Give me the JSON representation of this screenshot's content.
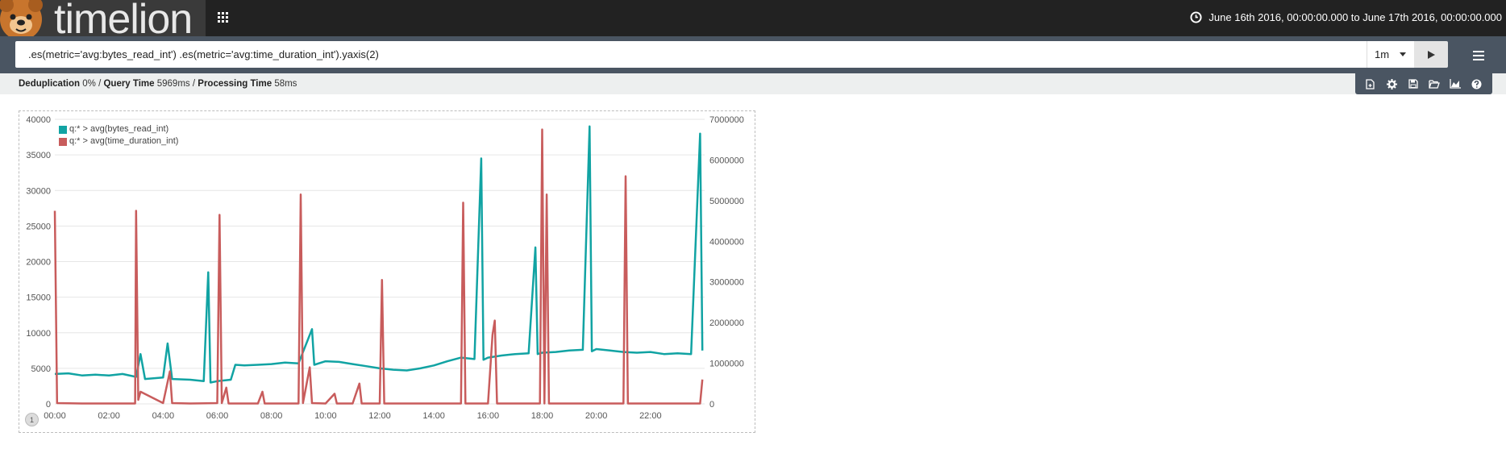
{
  "header": {
    "app_name": "timelion",
    "time_range": "June 16th 2016, 00:00:00.000 to June 17th 2016, 00:00:00.000"
  },
  "query": {
    "expression": ".es(metric='avg:bytes_read_int') .es(metric='avg:time_duration_int').yaxis(2)",
    "interval": "1m"
  },
  "stats": {
    "dedup_label": "Deduplication",
    "dedup_value": "0%",
    "sep1": "/",
    "query_time_label": "Query Time",
    "query_time_value": "5969ms",
    "sep2": "/",
    "processing_label": "Processing Time",
    "processing_value": "58ms"
  },
  "toolbar": {
    "icons": [
      "new-sheet-icon",
      "settings-icon",
      "save-icon",
      "open-icon",
      "chart-options-icon",
      "help-icon"
    ]
  },
  "panel": {
    "badge": "1"
  },
  "chart_data": {
    "type": "line",
    "colors": {
      "bytes_read": "#11a3a3",
      "time_duration": "#c85c5c"
    },
    "legend_position": "top-left",
    "grid": true,
    "x_ticks": [
      "00:00",
      "02:00",
      "04:00",
      "06:00",
      "08:00",
      "10:00",
      "12:00",
      "14:00",
      "16:00",
      "18:00",
      "20:00",
      "22:00"
    ],
    "xlim": [
      "00:00",
      "24:00"
    ],
    "y1_ticks": [
      "0",
      "5000",
      "10000",
      "15000",
      "20000",
      "25000",
      "30000",
      "35000",
      "40000"
    ],
    "y1lim": [
      0,
      40000
    ],
    "y2_ticks": [
      "0",
      "1000000",
      "2000000",
      "3000000",
      "4000000",
      "5000000",
      "6000000",
      "7000000"
    ],
    "y2lim": [
      0,
      7000000
    ],
    "series": [
      {
        "name": "q:* > avg(bytes_read_int)",
        "axis": "left",
        "points": [
          [
            "00:00",
            4200
          ],
          [
            "00:30",
            4300
          ],
          [
            "01:00",
            4000
          ],
          [
            "01:30",
            4100
          ],
          [
            "02:00",
            4000
          ],
          [
            "02:30",
            4200
          ],
          [
            "03:00",
            3800
          ],
          [
            "03:10",
            7000
          ],
          [
            "03:20",
            3500
          ],
          [
            "04:00",
            3700
          ],
          [
            "04:10",
            8500
          ],
          [
            "04:20",
            3500
          ],
          [
            "05:00",
            3400
          ],
          [
            "05:30",
            3200
          ],
          [
            "05:40",
            18500
          ],
          [
            "05:45",
            3000
          ],
          [
            "06:00",
            3200
          ],
          [
            "06:30",
            3400
          ],
          [
            "06:40",
            5500
          ],
          [
            "07:00",
            5400
          ],
          [
            "07:30",
            5500
          ],
          [
            "08:00",
            5600
          ],
          [
            "08:30",
            5800
          ],
          [
            "09:00",
            5700
          ],
          [
            "09:30",
            10500
          ],
          [
            "09:35",
            5500
          ],
          [
            "10:00",
            6000
          ],
          [
            "10:30",
            5900
          ],
          [
            "11:00",
            5600
          ],
          [
            "11:30",
            5300
          ],
          [
            "12:00",
            5000
          ],
          [
            "12:30",
            4800
          ],
          [
            "13:00",
            4700
          ],
          [
            "13:30",
            5000
          ],
          [
            "14:00",
            5400
          ],
          [
            "14:30",
            6000
          ],
          [
            "15:00",
            6500
          ],
          [
            "15:30",
            6300
          ],
          [
            "15:45",
            34500
          ],
          [
            "15:50",
            6200
          ],
          [
            "16:00",
            6500
          ],
          [
            "16:30",
            6800
          ],
          [
            "17:00",
            7000
          ],
          [
            "17:30",
            7100
          ],
          [
            "17:45",
            22000
          ],
          [
            "17:50",
            7000
          ],
          [
            "18:00",
            7200
          ],
          [
            "18:30",
            7300
          ],
          [
            "19:00",
            7500
          ],
          [
            "19:30",
            7600
          ],
          [
            "19:45",
            39000
          ],
          [
            "19:50",
            7400
          ],
          [
            "20:00",
            7700
          ],
          [
            "20:30",
            7500
          ],
          [
            "21:00",
            7300
          ],
          [
            "21:30",
            7200
          ],
          [
            "22:00",
            7300
          ],
          [
            "22:30",
            7000
          ],
          [
            "23:00",
            7100
          ],
          [
            "23:30",
            7000
          ],
          [
            "23:50",
            38000
          ],
          [
            "23:55",
            7500
          ]
        ]
      },
      {
        "name": "q:* > avg(time_duration_int)",
        "axis": "right",
        "points": [
          [
            "00:00",
            4750000
          ],
          [
            "00:05",
            20000
          ],
          [
            "01:00",
            10000
          ],
          [
            "02:00",
            10000
          ],
          [
            "02:58",
            10000
          ],
          [
            "03:00",
            4750000
          ],
          [
            "03:05",
            100000
          ],
          [
            "03:10",
            300000
          ],
          [
            "04:00",
            20000
          ],
          [
            "04:15",
            800000
          ],
          [
            "04:20",
            20000
          ],
          [
            "05:00",
            10000
          ],
          [
            "06:00",
            20000
          ],
          [
            "06:05",
            4650000
          ],
          [
            "06:10",
            20000
          ],
          [
            "06:20",
            400000
          ],
          [
            "06:25",
            10000
          ],
          [
            "07:30",
            10000
          ],
          [
            "07:40",
            300000
          ],
          [
            "07:45",
            10000
          ],
          [
            "09:00",
            10000
          ],
          [
            "09:05",
            5150000
          ],
          [
            "09:10",
            20000
          ],
          [
            "09:25",
            900000
          ],
          [
            "09:30",
            20000
          ],
          [
            "10:00",
            10000
          ],
          [
            "10:20",
            250000
          ],
          [
            "10:25",
            10000
          ],
          [
            "11:00",
            10000
          ],
          [
            "11:15",
            500000
          ],
          [
            "11:20",
            10000
          ],
          [
            "12:00",
            10000
          ],
          [
            "12:05",
            3050000
          ],
          [
            "12:10",
            10000
          ],
          [
            "14:00",
            10000
          ],
          [
            "15:00",
            10000
          ],
          [
            "15:05",
            4950000
          ],
          [
            "15:10",
            10000
          ],
          [
            "16:00",
            10000
          ],
          [
            "16:10",
            1700000
          ],
          [
            "16:15",
            2050000
          ],
          [
            "16:20",
            10000
          ],
          [
            "17:00",
            10000
          ],
          [
            "17:55",
            10000
          ],
          [
            "18:00",
            6750000
          ],
          [
            "18:05",
            10000
          ],
          [
            "18:10",
            5150000
          ],
          [
            "18:15",
            10000
          ],
          [
            "20:00",
            10000
          ],
          [
            "21:00",
            10000
          ],
          [
            "21:05",
            5600000
          ],
          [
            "21:10",
            10000
          ],
          [
            "22:00",
            10000
          ],
          [
            "23:50",
            10000
          ],
          [
            "23:55",
            600000
          ]
        ]
      }
    ]
  }
}
